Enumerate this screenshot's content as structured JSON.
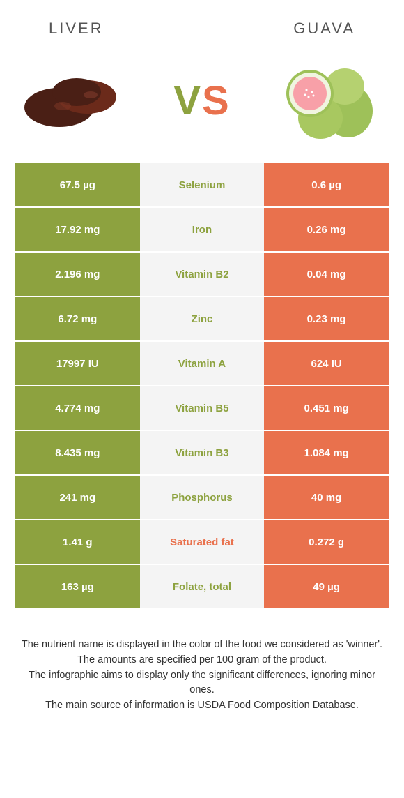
{
  "colors": {
    "green": "#8da23f",
    "orange": "#e9714d",
    "mid_bg": "#f4f4f4",
    "liver_dark": "#4a1f15",
    "liver_mid": "#6b2a1a",
    "guava_green": "#9ec159",
    "guava_pink": "#f8a0a8"
  },
  "header": {
    "left": "LIVER",
    "right": "GUAVA",
    "vs_v": "V",
    "vs_s": "S"
  },
  "rows": [
    {
      "left": "67.5 µg",
      "mid": "Selenium",
      "right": "0.6 µg",
      "winner": "left"
    },
    {
      "left": "17.92 mg",
      "mid": "Iron",
      "right": "0.26 mg",
      "winner": "left"
    },
    {
      "left": "2.196 mg",
      "mid": "Vitamin B2",
      "right": "0.04 mg",
      "winner": "left"
    },
    {
      "left": "6.72 mg",
      "mid": "Zinc",
      "right": "0.23 mg",
      "winner": "left"
    },
    {
      "left": "17997 IU",
      "mid": "Vitamin A",
      "right": "624 IU",
      "winner": "left"
    },
    {
      "left": "4.774 mg",
      "mid": "Vitamin B5",
      "right": "0.451 mg",
      "winner": "left"
    },
    {
      "left": "8.435 mg",
      "mid": "Vitamin B3",
      "right": "1.084 mg",
      "winner": "left"
    },
    {
      "left": "241 mg",
      "mid": "Phosphorus",
      "right": "40 mg",
      "winner": "left"
    },
    {
      "left": "1.41 g",
      "mid": "Saturated fat",
      "right": "0.272 g",
      "winner": "right"
    },
    {
      "left": "163 µg",
      "mid": "Folate, total",
      "right": "49 µg",
      "winner": "left"
    }
  ],
  "footer": {
    "line1": "The nutrient name is displayed in the color of the food we considered as 'winner'.",
    "line2": "The amounts are specified per 100 gram of the product.",
    "line3": "The infographic aims to display only the significant differences, ignoring minor ones.",
    "line4": "The main source of information is USDA Food Composition Database."
  }
}
